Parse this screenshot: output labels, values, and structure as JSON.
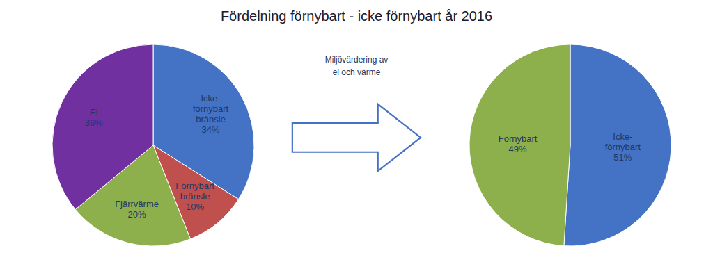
{
  "title": "Fördelning förnybart - icke förnybart år 2016",
  "annotations": [
    "Miljövärdering av\nel och värme"
  ],
  "chart_data": [
    {
      "type": "pie",
      "categories": [
        "Icke-\nförnybart\nbränsle",
        "Förnybart\nbränsle",
        "Fjärrvärme",
        "El"
      ],
      "values": [
        34,
        10,
        20,
        36
      ],
      "value_labels": [
        "34%",
        "10%",
        "20%",
        "36%"
      ],
      "colors": [
        "#4472C4",
        "#C0504D",
        "#8DB04C",
        "#7030A0"
      ],
      "data_labels": true
    },
    {
      "type": "pie",
      "categories": [
        "Icke-\nförnybart",
        "Förnybart"
      ],
      "values": [
        51,
        49
      ],
      "value_labels": [
        "51%",
        "49%"
      ],
      "colors": [
        "#4472C4",
        "#8DB04C"
      ],
      "data_labels": true
    }
  ]
}
